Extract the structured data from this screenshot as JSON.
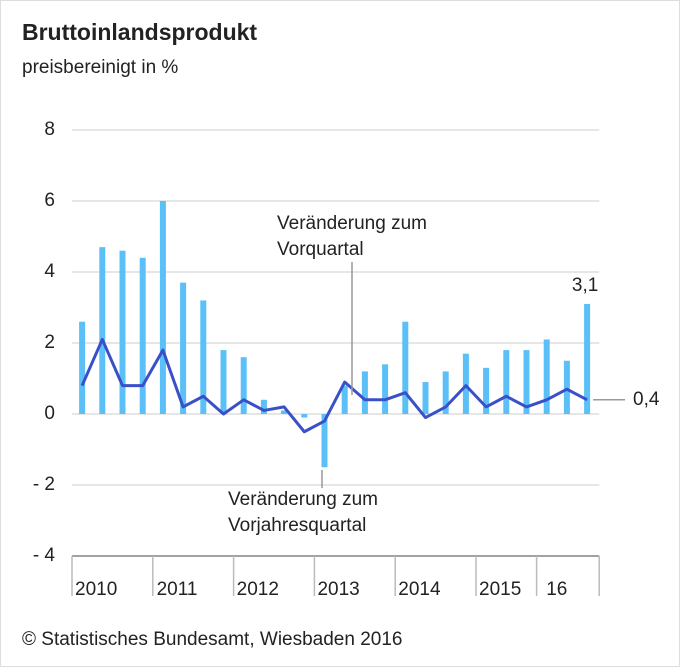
{
  "chart_data": {
    "type": "bar_line",
    "title": "Bruttoinlandsprodukt",
    "subtitle": "preisbereinigt in %",
    "source": "© Statistisches Bundesamt, Wiesbaden 2016",
    "categories": [
      null,
      "2010",
      null,
      null,
      null,
      "2011",
      null,
      null,
      null,
      "2012",
      null,
      null,
      null,
      "2013",
      null,
      null,
      null,
      "2014",
      null,
      null,
      null,
      "2015",
      null,
      null,
      "16",
      null
    ],
    "ylim": [
      -4,
      8
    ],
    "yticks": [
      {
        "value": -4,
        "label": "- 4"
      },
      {
        "value": -2,
        "label": "- 2"
      },
      0,
      2,
      4,
      6,
      8
    ],
    "grid": true,
    "series": [
      {
        "name": "Veränderung zum Vorjahresquartal",
        "color": "#5bc0f8",
        "values": [
          2.6,
          4.7,
          4.6,
          4.4,
          6.0,
          3.7,
          3.2,
          1.8,
          1.6,
          0.4,
          0.1,
          -0.1,
          -1.5,
          0.8,
          1.2,
          1.4,
          2.6,
          0.9,
          1.2,
          1.7,
          1.3,
          1.8,
          1.8,
          2.1,
          1.5,
          3.1
        ],
        "value_labels": [
          null,
          null,
          null,
          null,
          null,
          null,
          null,
          null,
          null,
          null,
          null,
          null,
          null,
          null,
          null,
          null,
          null,
          null,
          null,
          null,
          null,
          null,
          null,
          null,
          null,
          "3,1"
        ]
      },
      {
        "name": "Veränderung zum Vorquartal",
        "color": "#3a50c8",
        "values": [
          0.8,
          2.1,
          0.8,
          0.8,
          1.8,
          0.2,
          0.5,
          0.0,
          0.4,
          0.1,
          0.2,
          -0.5,
          -0.2,
          0.9,
          0.4,
          0.4,
          0.6,
          -0.1,
          0.2,
          0.8,
          0.2,
          0.5,
          0.2,
          0.4,
          0.7,
          0.4
        ],
        "value_labels": [
          null,
          null,
          null,
          null,
          null,
          null,
          null,
          null,
          null,
          null,
          null,
          null,
          null,
          null,
          null,
          null,
          null,
          null,
          null,
          null,
          null,
          null,
          null,
          null,
          null,
          "0,4"
        ]
      }
    ],
    "annotations": [
      [
        "Veränderung zum",
        "Vorquartal"
      ],
      [
        "Veränderung zum",
        "Vorjahresquartal"
      ]
    ]
  }
}
